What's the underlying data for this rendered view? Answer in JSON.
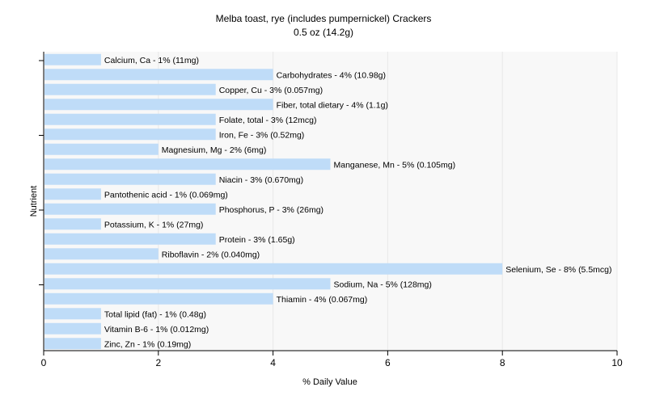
{
  "chart_data": {
    "type": "bar",
    "orientation": "horizontal",
    "title": "Melba toast, rye (includes pumpernickel) Crackers",
    "subtitle": "0.5 oz (14.2g)",
    "xlabel": "% Daily Value",
    "ylabel": "Nutrient",
    "xlim": [
      0,
      10
    ],
    "xticks": [
      "0",
      "2",
      "4",
      "6",
      "8",
      "10"
    ],
    "grid": true,
    "colors": {
      "bar": "#bfdcf8",
      "plot_background": "#f8f8f8"
    },
    "categories": [
      "Calcium, Ca",
      "Carbohydrates",
      "Copper, Cu",
      "Fiber, total dietary",
      "Folate, total",
      "Iron, Fe",
      "Magnesium, Mg",
      "Manganese, Mn",
      "Niacin",
      "Pantothenic acid",
      "Phosphorus, P",
      "Potassium, K",
      "Protein",
      "Riboflavin",
      "Selenium, Se",
      "Sodium, Na",
      "Thiamin",
      "Total lipid (fat)",
      "Vitamin B-6",
      "Zinc, Zn"
    ],
    "values": [
      1,
      4,
      3,
      4,
      3,
      3,
      2,
      5,
      3,
      1,
      3,
      1,
      3,
      2,
      8,
      5,
      4,
      1,
      1,
      1
    ],
    "labels": [
      "Calcium, Ca - 1% (11mg)",
      "Carbohydrates - 4% (10.98g)",
      "Copper, Cu - 3% (0.057mg)",
      "Fiber, total dietary - 4% (1.1g)",
      "Folate, total - 3% (12mcg)",
      "Iron, Fe - 3% (0.52mg)",
      "Magnesium, Mg - 2% (6mg)",
      "Manganese, Mn - 5% (0.105mg)",
      "Niacin - 3% (0.670mg)",
      "Pantothenic acid - 1% (0.069mg)",
      "Phosphorus, P - 3% (26mg)",
      "Potassium, K - 1% (27mg)",
      "Protein - 3% (1.65g)",
      "Riboflavin - 2% (0.040mg)",
      "Selenium, Se - 8% (5.5mcg)",
      "Sodium, Na - 5% (128mg)",
      "Thiamin - 4% (0.067mg)",
      "Total lipid (fat) - 1% (0.48g)",
      "Vitamin B-6 - 1% (0.012mg)",
      "Zinc, Zn - 1% (0.19mg)"
    ]
  }
}
